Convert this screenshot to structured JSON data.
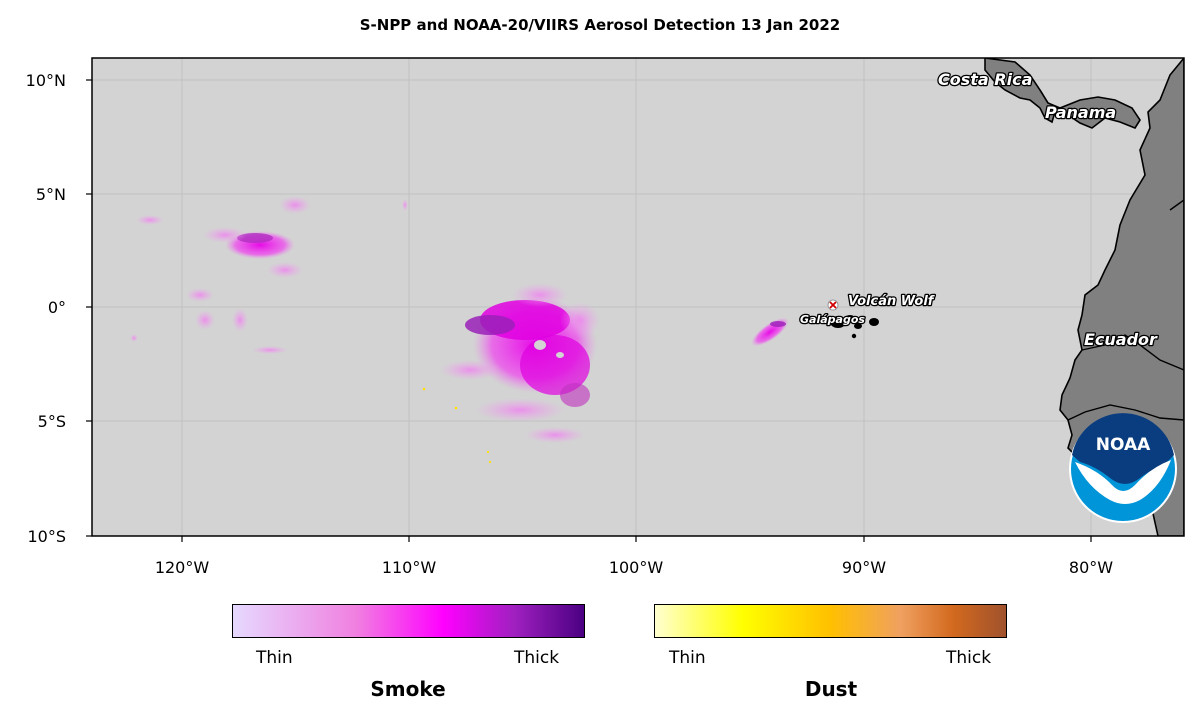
{
  "title": "S-NPP and NOAA-20/VIIRS Aerosol Detection  13 Jan 2022",
  "lat_labels": [
    "10°N",
    "5°N",
    "0°",
    "5°S",
    "10°S"
  ],
  "lon_labels": [
    "120°W",
    "110°W",
    "100°W",
    "90°W",
    "80°W"
  ],
  "places": {
    "costa_rica": "Costa Rica",
    "panama": "Panama",
    "ecuador": "Ecuador",
    "volcano": "Volcán Wolf",
    "galapagos": "Galápagos"
  },
  "logo": {
    "text": "NOAA"
  },
  "legend": {
    "smoke": {
      "title": "Smoke",
      "thin": "Thin",
      "thick": "Thick"
    },
    "dust": {
      "title": "Dust",
      "thin": "Thin",
      "thick": "Thick"
    }
  },
  "colors": {
    "ocean": "#d3d3d3",
    "land": "#808080",
    "smoke_thin": "#e6d9ff",
    "smoke_mid": "#ff00ff",
    "smoke_thick": "#4b0082",
    "dust_thin": "#ffffd0",
    "dust_mid": "#ffe000",
    "dust_thick": "#a0522d",
    "noaa_blue": "#0094d8"
  }
}
